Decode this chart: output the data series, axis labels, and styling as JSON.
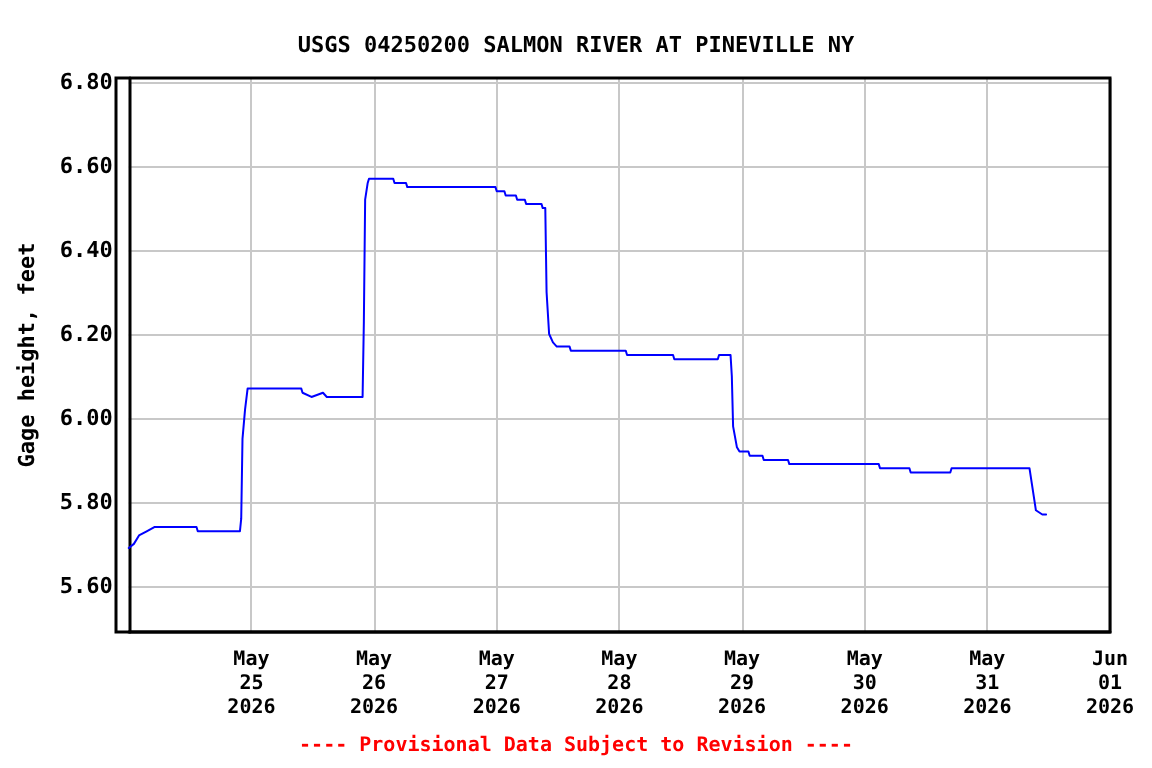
{
  "chart_data": {
    "type": "line",
    "title": "USGS 04250200 SALMON RIVER AT PINEVILLE NY",
    "ylabel": "Gage height, feet",
    "annotations": [
      "---- Provisional Data Subject to Revision ----"
    ],
    "xlim": [
      "2026-05-24T00:00",
      "2026-06-01T00:00"
    ],
    "xticks": [
      {
        "value": "2026-05-25",
        "label": "May\n25\n2026"
      },
      {
        "value": "2026-05-26",
        "label": "May\n26\n2026"
      },
      {
        "value": "2026-05-27",
        "label": "May\n27\n2026"
      },
      {
        "value": "2026-05-28",
        "label": "May\n28\n2026"
      },
      {
        "value": "2026-05-29",
        "label": "May\n29\n2026"
      },
      {
        "value": "2026-05-30",
        "label": "May\n30\n2026"
      },
      {
        "value": "2026-05-31",
        "label": "May\n31\n2026"
      },
      {
        "value": "2026-06-01",
        "label": "Jun\n01\n2026"
      }
    ],
    "ylim": [
      5.49,
      6.81
    ],
    "yticks": [
      {
        "value": 5.6,
        "label": "5.60"
      },
      {
        "value": 5.8,
        "label": "5.80"
      },
      {
        "value": 6.0,
        "label": "6.00"
      },
      {
        "value": 6.2,
        "label": "6.20"
      },
      {
        "value": 6.4,
        "label": "6.40"
      },
      {
        "value": 6.6,
        "label": "6.60"
      },
      {
        "value": 6.8,
        "label": "6.80"
      }
    ],
    "grid": true,
    "marker": "none",
    "line_style": "solid",
    "series": [
      {
        "color": "#0000ff",
        "x": [
          "2026-05-24T00:00",
          "2026-05-24T01:00",
          "2026-05-24T02:00",
          "2026-05-24T03:30",
          "2026-05-24T05:00",
          "2026-05-24T13:15",
          "2026-05-24T13:30",
          "2026-05-24T21:45",
          "2026-05-24T22:00",
          "2026-05-24T22:15",
          "2026-05-24T22:45",
          "2026-05-24T23:15",
          "2026-05-25T09:45",
          "2026-05-25T10:00",
          "2026-05-25T11:45",
          "2026-05-25T14:00",
          "2026-05-25T14:45",
          "2026-05-25T21:45",
          "2026-05-25T22:00",
          "2026-05-25T22:15",
          "2026-05-25T22:45",
          "2026-05-25T23:00",
          "2026-05-26T03:45",
          "2026-05-26T04:00",
          "2026-05-26T06:15",
          "2026-05-26T06:30",
          "2026-05-26T23:45",
          "2026-05-27T00:00",
          "2026-05-27T01:30",
          "2026-05-27T01:45",
          "2026-05-27T03:45",
          "2026-05-27T04:00",
          "2026-05-27T05:30",
          "2026-05-27T05:45",
          "2026-05-27T08:45",
          "2026-05-27T09:00",
          "2026-05-27T09:30",
          "2026-05-27T09:45",
          "2026-05-27T10:15",
          "2026-05-27T11:00",
          "2026-05-27T11:45",
          "2026-05-27T14:15",
          "2026-05-27T14:30",
          "2026-05-28T01:15",
          "2026-05-28T01:30",
          "2026-05-28T10:30",
          "2026-05-28T10:45",
          "2026-05-28T19:15",
          "2026-05-28T19:30",
          "2026-05-28T21:45",
          "2026-05-28T22:00",
          "2026-05-28T22:15",
          "2026-05-28T23:00",
          "2026-05-28T23:30",
          "2026-05-29T01:15",
          "2026-05-29T01:30",
          "2026-05-29T04:00",
          "2026-05-29T04:15",
          "2026-05-29T09:00",
          "2026-05-29T09:15",
          "2026-05-30T02:45",
          "2026-05-30T03:00",
          "2026-05-30T08:45",
          "2026-05-30T09:00",
          "2026-05-30T16:45",
          "2026-05-30T17:00",
          "2026-05-31T08:15",
          "2026-05-31T08:45",
          "2026-05-31T09:15",
          "2026-05-31T09:30",
          "2026-05-31T10:45",
          "2026-05-31T11:30"
        ],
        "values": [
          5.69,
          5.7,
          5.72,
          5.73,
          5.74,
          5.74,
          5.73,
          5.73,
          5.76,
          5.95,
          6.02,
          6.07,
          6.07,
          6.06,
          6.05,
          6.06,
          6.05,
          6.05,
          6.23,
          6.52,
          6.56,
          6.57,
          6.57,
          6.56,
          6.56,
          6.55,
          6.55,
          6.54,
          6.54,
          6.53,
          6.53,
          6.52,
          6.52,
          6.51,
          6.51,
          6.5,
          6.5,
          6.3,
          6.2,
          6.18,
          6.17,
          6.17,
          6.16,
          6.16,
          6.15,
          6.15,
          6.14,
          6.14,
          6.15,
          6.15,
          6.1,
          5.98,
          5.93,
          5.92,
          5.92,
          5.91,
          5.91,
          5.9,
          5.9,
          5.89,
          5.89,
          5.88,
          5.88,
          5.87,
          5.87,
          5.88,
          5.88,
          5.84,
          5.8,
          5.78,
          5.77,
          5.77
        ]
      }
    ]
  }
}
